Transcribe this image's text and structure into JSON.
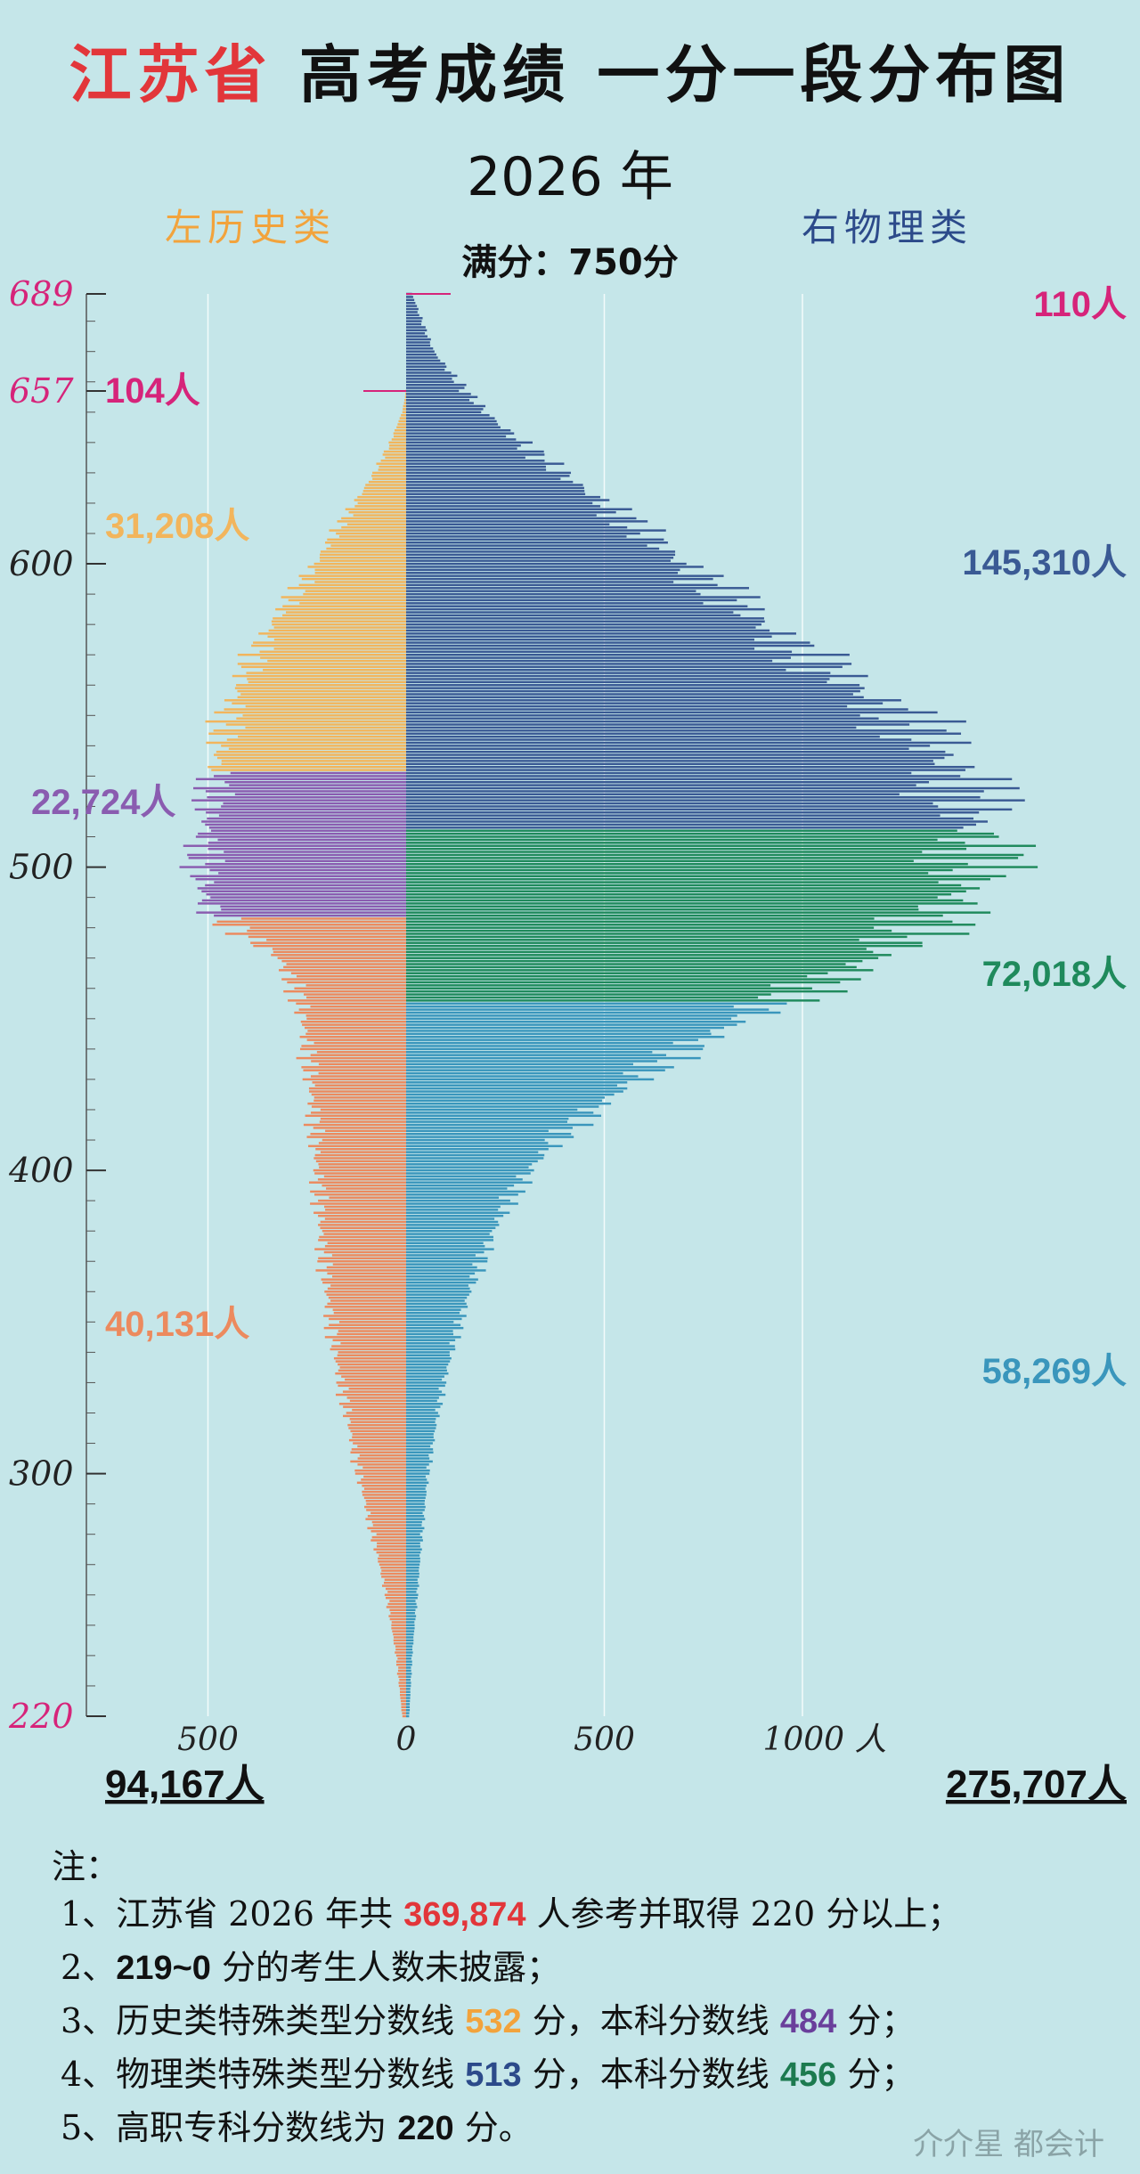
{
  "title": {
    "province": "江苏省",
    "rest": "高考成绩 一分一段分布图"
  },
  "year": "2026 年",
  "left_label": "左历史类",
  "right_label": "右物理类",
  "full_score": {
    "label": "满分：",
    "value": "750分"
  },
  "left_total": "94,167人",
  "right_total": "275,707人",
  "notes": {
    "head": "注：",
    "n1": {
      "a": "1、江苏省 2026 年共 ",
      "b": "369,874",
      "c": " 人参考并取得 220 分以上；"
    },
    "n2": {
      "a": "2、",
      "b": "219~0",
      "c": " 分的考生人数未披露；"
    },
    "n3": {
      "a": "3、历史类特殊类型分数线 ",
      "b": "532",
      "c": " 分，本科分数线 ",
      "d": "484",
      "e": " 分；"
    },
    "n4": {
      "a": "4、物理类特殊类型分数线 ",
      "b": "513",
      "c": " 分，本科分数线 ",
      "d": "456",
      "e": " 分；"
    },
    "n5": {
      "a": "5、高职专科分数线为 ",
      "b": "220",
      "c": " 分。"
    }
  },
  "watermark": "介介星   都会计",
  "chart_data": {
    "type": "bar",
    "orientation": "horizontal-population-pyramid",
    "y_axis": {
      "min": 220,
      "max": 689,
      "ticks": [
        689,
        657,
        600,
        500,
        400,
        300,
        220
      ]
    },
    "x_axis": {
      "left_ticks": [
        {
          "v": 500,
          "label": "500"
        },
        {
          "v": 0,
          "label": "0"
        }
      ],
      "right_ticks": [
        {
          "v": 500,
          "label": "500"
        },
        {
          "v": 1000,
          "label": "1000 人"
        }
      ]
    },
    "colors": {
      "hist_top": "#f2b55c",
      "hist_mid": "#8a5cb0",
      "hist_low": "#ec8a5e",
      "phys_top": "#3a5a94",
      "phys_mid": "#1f8a5c",
      "phys_low": "#3a96bc"
    },
    "left_series": {
      "name": "历史类",
      "max_score": 657,
      "control_points": [
        [
          657,
          0
        ],
        [
          650,
          10
        ],
        [
          640,
          40
        ],
        [
          630,
          80
        ],
        [
          620,
          130
        ],
        [
          610,
          180
        ],
        [
          600,
          230
        ],
        [
          590,
          280
        ],
        [
          580,
          340
        ],
        [
          570,
          380
        ],
        [
          560,
          420
        ],
        [
          550,
          450
        ],
        [
          540,
          470
        ],
        [
          532,
          480
        ],
        [
          520,
          495
        ],
        [
          510,
          510
        ],
        [
          500,
          515
        ],
        [
          490,
          510
        ],
        [
          484,
          480
        ],
        [
          470,
          320
        ],
        [
          460,
          280
        ],
        [
          450,
          260
        ],
        [
          440,
          250
        ],
        [
          420,
          235
        ],
        [
          400,
          225
        ],
        [
          380,
          215
        ],
        [
          360,
          200
        ],
        [
          340,
          180
        ],
        [
          320,
          150
        ],
        [
          300,
          120
        ],
        [
          280,
          85
        ],
        [
          260,
          50
        ],
        [
          240,
          25
        ],
        [
          220,
          10
        ]
      ],
      "bands": [
        {
          "from": 532,
          "to": 657,
          "total": "31,208人",
          "color_key": "hist_top"
        },
        {
          "from": 484,
          "to": 531,
          "total": "22,724人",
          "color_key": "hist_mid"
        },
        {
          "from": 220,
          "to": 483,
          "total": "40,131人",
          "color_key": "hist_low"
        }
      ],
      "top_count": "104人"
    },
    "right_series": {
      "name": "物理类",
      "max_score": 689,
      "control_points": [
        [
          689,
          15
        ],
        [
          680,
          40
        ],
        [
          670,
          70
        ],
        [
          660,
          130
        ],
        [
          650,
          200
        ],
        [
          640,
          290
        ],
        [
          630,
          390
        ],
        [
          620,
          500
        ],
        [
          610,
          600
        ],
        [
          600,
          700
        ],
        [
          590,
          800
        ],
        [
          580,
          900
        ],
        [
          570,
          1000
        ],
        [
          560,
          1120
        ],
        [
          550,
          1250
        ],
        [
          540,
          1330
        ],
        [
          530,
          1390
        ],
        [
          522,
          1420
        ],
        [
          513,
          1430
        ],
        [
          505,
          1450
        ],
        [
          495,
          1420
        ],
        [
          485,
          1350
        ],
        [
          475,
          1250
        ],
        [
          465,
          1100
        ],
        [
          456,
          950
        ],
        [
          450,
          850
        ],
        [
          440,
          700
        ],
        [
          430,
          580
        ],
        [
          420,
          470
        ],
        [
          410,
          380
        ],
        [
          400,
          310
        ],
        [
          390,
          260
        ],
        [
          380,
          220
        ],
        [
          370,
          190
        ],
        [
          360,
          160
        ],
        [
          350,
          135
        ],
        [
          340,
          115
        ],
        [
          330,
          95
        ],
        [
          320,
          80
        ],
        [
          300,
          55
        ],
        [
          280,
          40
        ],
        [
          260,
          28
        ],
        [
          240,
          15
        ],
        [
          220,
          8
        ]
      ],
      "bands": [
        {
          "from": 513,
          "to": 689,
          "total": "145,310人",
          "color_key": "phys_top"
        },
        {
          "from": 456,
          "to": 512,
          "total": "72,018人",
          "color_key": "phys_mid"
        },
        {
          "from": 220,
          "to": 455,
          "total": "58,269人",
          "color_key": "phys_low"
        }
      ],
      "top_count": "110人"
    },
    "tick_label_color": "#d6247a",
    "top_marker_color": "#d6247a"
  }
}
